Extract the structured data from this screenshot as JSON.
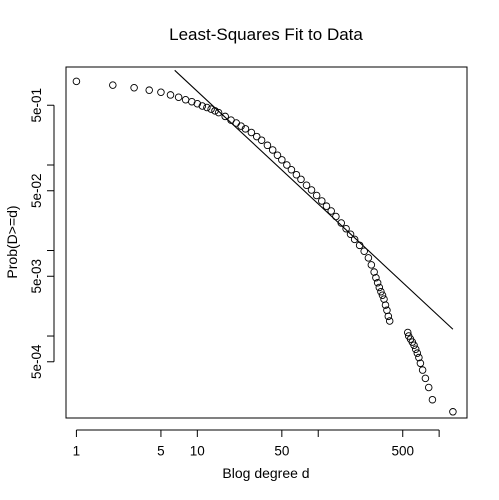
{
  "chart_data": {
    "type": "scatter",
    "title": "Least-Squares Fit to Data",
    "xlabel": "Blog degree d",
    "ylabel": "Prob(D>=d)",
    "x_scale": "log",
    "y_scale": "log",
    "xlim": [
      0.82,
      1700
    ],
    "ylim": [
      0.00011,
      1.4
    ],
    "x_ticks": [
      {
        "value": 1,
        "label": "1"
      },
      {
        "value": 5,
        "label": "5"
      },
      {
        "value": 10,
        "label": "10"
      },
      {
        "value": 50,
        "label": "50"
      },
      {
        "value": 500,
        "label": "500"
      }
    ],
    "x_minor_ticks": [
      100,
      1000
    ],
    "y_ticks": [
      {
        "value": 0.5,
        "label": "5e-01"
      },
      {
        "value": 0.05,
        "label": "5e-02"
      },
      {
        "value": 0.005,
        "label": "5e-03"
      },
      {
        "value": 0.0005,
        "label": "5e-04"
      }
    ],
    "y_minor_ticks": [
      0.1,
      0.01,
      0.001
    ],
    "grid": false,
    "legend": "none",
    "series": [
      {
        "marker": "open-circle",
        "points": [
          [
            1,
            0.95
          ],
          [
            2,
            0.86
          ],
          [
            3,
            0.8
          ],
          [
            4,
            0.75
          ],
          [
            5,
            0.71
          ],
          [
            6,
            0.66
          ],
          [
            7,
            0.62
          ],
          [
            8,
            0.58
          ],
          [
            9,
            0.55
          ],
          [
            10,
            0.52
          ],
          [
            11,
            0.49
          ],
          [
            12,
            0.47
          ],
          [
            13,
            0.45
          ],
          [
            14,
            0.43
          ],
          [
            15,
            0.41
          ],
          [
            17,
            0.37
          ],
          [
            19,
            0.335
          ],
          [
            21,
            0.31
          ],
          [
            23,
            0.285
          ],
          [
            25,
            0.265
          ],
          [
            28,
            0.24
          ],
          [
            31,
            0.215
          ],
          [
            34,
            0.195
          ],
          [
            38,
            0.17
          ],
          [
            42,
            0.15
          ],
          [
            46,
            0.13
          ],
          [
            50,
            0.115
          ],
          [
            55,
            0.1
          ],
          [
            60,
            0.088
          ],
          [
            66,
            0.077
          ],
          [
            72,
            0.068
          ],
          [
            80,
            0.058
          ],
          [
            88,
            0.051
          ],
          [
            97,
            0.044
          ],
          [
            107,
            0.038
          ],
          [
            117,
            0.033
          ],
          [
            128,
            0.029
          ],
          [
            140,
            0.025
          ],
          [
            155,
            0.021
          ],
          [
            170,
            0.018
          ],
          [
            185,
            0.0155
          ],
          [
            200,
            0.0135
          ],
          [
            220,
            0.0115
          ],
          [
            240,
            0.0098
          ],
          [
            260,
            0.0082
          ],
          [
            275,
            0.0068
          ],
          [
            290,
            0.0056
          ],
          [
            300,
            0.0048
          ],
          [
            310,
            0.0042
          ],
          [
            320,
            0.0037
          ],
          [
            330,
            0.0033
          ],
          [
            340,
            0.003
          ],
          [
            350,
            0.0027
          ],
          [
            360,
            0.0023
          ],
          [
            370,
            0.002
          ],
          [
            380,
            0.0017
          ],
          [
            390,
            0.0015
          ],
          [
            550,
            0.0011
          ],
          [
            560,
            0.001
          ],
          [
            580,
            0.00092
          ],
          [
            600,
            0.00085
          ],
          [
            620,
            0.00078
          ],
          [
            640,
            0.0007
          ],
          [
            660,
            0.00063
          ],
          [
            680,
            0.00056
          ],
          [
            700,
            0.00048
          ],
          [
            730,
            0.0004
          ],
          [
            770,
            0.00032
          ],
          [
            820,
            0.00025
          ],
          [
            880,
            0.00018
          ],
          [
            1300,
            0.00013
          ]
        ]
      }
    ],
    "fit_line": {
      "type": "least-squares",
      "from": [
        6.5,
        1.28
      ],
      "to": [
        1300,
        0.0012
      ]
    }
  }
}
